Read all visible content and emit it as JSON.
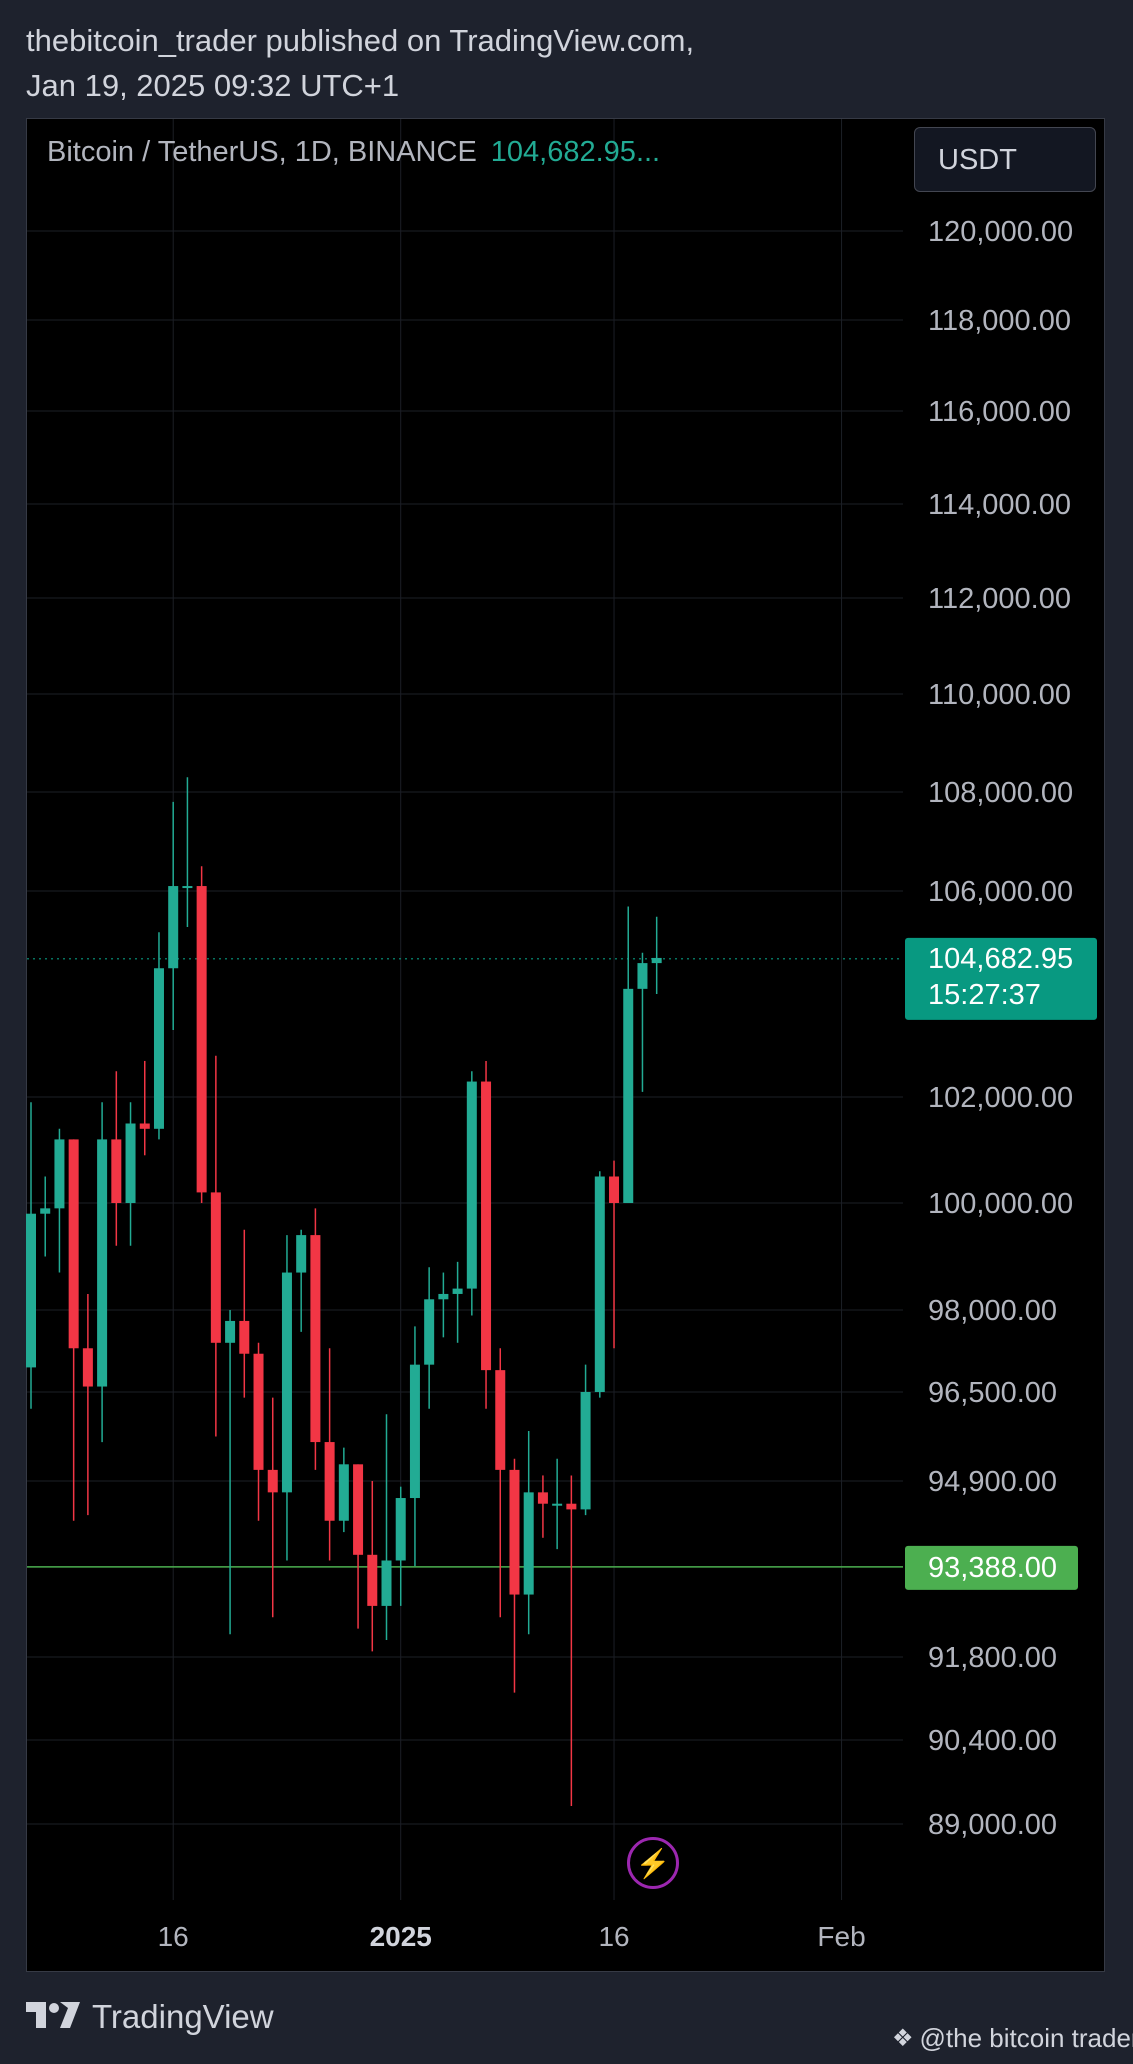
{
  "header": {
    "publisher_line": "thebitcoin_trader published on TradingView.com,",
    "date_line": "Jan 19, 2025 09:32 UTC+1"
  },
  "legend": {
    "symbol": "Bitcoin / TetherUS, 1D, BINANCE",
    "last_price": "104,682.95..."
  },
  "currency_button": "USDT",
  "footer": {
    "logo_text": "TradingView",
    "watermark": "@the bitcoin trader"
  },
  "colors": {
    "up": "#22ab94",
    "down": "#f23645",
    "support_line": "#4caf50",
    "last_price_label": "#089981",
    "background": "#000000",
    "grid": "#1c1f26"
  },
  "icons": [
    "flash-icon",
    "tradingview-logo-icon",
    "binance-diamond-icon"
  ],
  "chart_data": {
    "type": "candlestick",
    "title": "Bitcoin / TetherUS, 1D, BINANCE",
    "xlabel": "",
    "ylabel": "",
    "ylim": [
      88000,
      121000
    ],
    "y_ticks": [
      120000,
      118000,
      116000,
      114000,
      112000,
      110000,
      108000,
      106000,
      102000,
      100000,
      98000,
      96500,
      94900,
      91800,
      90400,
      89000
    ],
    "y_tick_labels": [
      "120,000.00",
      "118,000.00",
      "116,000.00",
      "114,000.00",
      "112,000.00",
      "110,000.00",
      "108,000.00",
      "106,000.00",
      "102,000.00",
      "100,000.00",
      "98,000.00",
      "96,500.00",
      "94,900.00",
      "91,800.00",
      "90,400.00",
      "89,000.00"
    ],
    "x_tick_labels": [
      {
        "date": "2024-12-16",
        "label": "16"
      },
      {
        "date": "2025-01-01",
        "label": "2025"
      },
      {
        "date": "2025-01-16",
        "label": "16"
      },
      {
        "date": "2025-02-01",
        "label": "Feb"
      }
    ],
    "last_price": {
      "value": 104682.95,
      "label": "104,682.95",
      "countdown": "15:27:37"
    },
    "horizontal_line": {
      "value": 93388,
      "label": "93,388.00"
    },
    "candles": [
      {
        "date": "2024-12-06",
        "open": 96950,
        "high": 101900,
        "low": 96200,
        "close": 99800
      },
      {
        "date": "2024-12-07",
        "open": 99800,
        "high": 100500,
        "low": 99000,
        "close": 99900
      },
      {
        "date": "2024-12-08",
        "open": 99900,
        "high": 101400,
        "low": 98700,
        "close": 101200
      },
      {
        "date": "2024-12-09",
        "open": 101200,
        "high": 101200,
        "low": 94200,
        "close": 97300
      },
      {
        "date": "2024-12-10",
        "open": 97300,
        "high": 98300,
        "low": 94300,
        "close": 96600
      },
      {
        "date": "2024-12-11",
        "open": 96600,
        "high": 101900,
        "low": 95600,
        "close": 101200
      },
      {
        "date": "2024-12-12",
        "open": 101200,
        "high": 102500,
        "low": 99200,
        "close": 100000
      },
      {
        "date": "2024-12-13",
        "open": 100000,
        "high": 101900,
        "low": 99200,
        "close": 101500
      },
      {
        "date": "2024-12-14",
        "open": 101500,
        "high": 102700,
        "low": 100900,
        "close": 101400
      },
      {
        "date": "2024-12-15",
        "open": 101400,
        "high": 105200,
        "low": 101200,
        "close": 104500
      },
      {
        "date": "2024-12-16",
        "open": 104500,
        "high": 107800,
        "low": 103300,
        "close": 106100
      },
      {
        "date": "2024-12-17",
        "open": 106100,
        "high": 108300,
        "low": 105300,
        "close": 106100
      },
      {
        "date": "2024-12-18",
        "open": 106100,
        "high": 106500,
        "low": 100000,
        "close": 100200
      },
      {
        "date": "2024-12-19",
        "open": 100200,
        "high": 102800,
        "low": 95700,
        "close": 97400
      },
      {
        "date": "2024-12-20",
        "open": 97400,
        "high": 98000,
        "low": 92200,
        "close": 97800
      },
      {
        "date": "2024-12-21",
        "open": 97800,
        "high": 99500,
        "low": 96400,
        "close": 97200
      },
      {
        "date": "2024-12-22",
        "open": 97200,
        "high": 97400,
        "low": 94200,
        "close": 95100
      },
      {
        "date": "2024-12-23",
        "open": 95100,
        "high": 96400,
        "low": 92500,
        "close": 94700
      },
      {
        "date": "2024-12-24",
        "open": 94700,
        "high": 99400,
        "low": 93500,
        "close": 98700
      },
      {
        "date": "2024-12-25",
        "open": 98700,
        "high": 99500,
        "low": 97600,
        "close": 99400
      },
      {
        "date": "2024-12-26",
        "open": 99400,
        "high": 99900,
        "low": 95100,
        "close": 95600
      },
      {
        "date": "2024-12-27",
        "open": 95600,
        "high": 97300,
        "low": 93500,
        "close": 94200
      },
      {
        "date": "2024-12-28",
        "open": 94200,
        "high": 95500,
        "low": 94000,
        "close": 95200
      },
      {
        "date": "2024-12-29",
        "open": 95200,
        "high": 95200,
        "low": 92300,
        "close": 93600
      },
      {
        "date": "2024-12-30",
        "open": 93600,
        "high": 94900,
        "low": 91900,
        "close": 92700
      },
      {
        "date": "2024-12-31",
        "open": 92700,
        "high": 96100,
        "low": 92100,
        "close": 93500
      },
      {
        "date": "2025-01-01",
        "open": 93500,
        "high": 94800,
        "low": 92700,
        "close": 94600
      },
      {
        "date": "2025-01-02",
        "open": 94600,
        "high": 97700,
        "low": 93400,
        "close": 97000
      },
      {
        "date": "2025-01-03",
        "open": 97000,
        "high": 98800,
        "low": 96200,
        "close": 98200
      },
      {
        "date": "2025-01-04",
        "open": 98200,
        "high": 98700,
        "low": 97500,
        "close": 98300
      },
      {
        "date": "2025-01-05",
        "open": 98300,
        "high": 98900,
        "low": 97400,
        "close": 98400
      },
      {
        "date": "2025-01-06",
        "open": 98400,
        "high": 102500,
        "low": 97900,
        "close": 102300
      },
      {
        "date": "2025-01-07",
        "open": 102300,
        "high": 102700,
        "low": 96200,
        "close": 96900
      },
      {
        "date": "2025-01-08",
        "open": 96900,
        "high": 97300,
        "low": 92500,
        "close": 95100
      },
      {
        "date": "2025-01-09",
        "open": 95100,
        "high": 95300,
        "low": 91200,
        "close": 92900
      },
      {
        "date": "2025-01-10",
        "open": 92900,
        "high": 95800,
        "low": 92200,
        "close": 94700
      },
      {
        "date": "2025-01-11",
        "open": 94700,
        "high": 95000,
        "low": 93900,
        "close": 94500
      },
      {
        "date": "2025-01-12",
        "open": 94500,
        "high": 95300,
        "low": 93700,
        "close": 94500
      },
      {
        "date": "2025-01-13",
        "open": 94500,
        "high": 95000,
        "low": 89300,
        "close": 94400
      },
      {
        "date": "2025-01-14",
        "open": 94400,
        "high": 97000,
        "low": 94300,
        "close": 96500
      },
      {
        "date": "2025-01-15",
        "open": 96500,
        "high": 100600,
        "low": 96400,
        "close": 100500
      },
      {
        "date": "2025-01-16",
        "open": 100500,
        "high": 100800,
        "low": 97300,
        "close": 100000
      },
      {
        "date": "2025-01-17",
        "open": 100000,
        "high": 105700,
        "low": 100000,
        "close": 104100
      },
      {
        "date": "2025-01-18",
        "open": 104100,
        "high": 104800,
        "low": 102100,
        "close": 104600
      },
      {
        "date": "2025-01-19",
        "open": 104600,
        "high": 105500,
        "low": 104000,
        "close": 104700
      }
    ]
  }
}
